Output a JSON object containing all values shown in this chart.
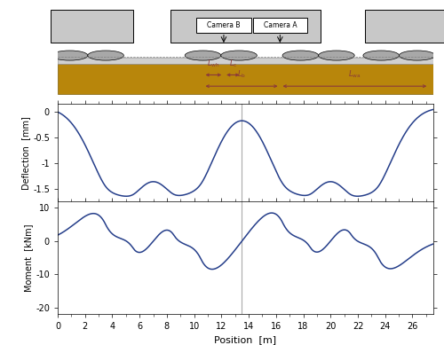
{
  "line_color": "#253e8a",
  "vline_color": "#aaaaaa",
  "vline_x": 13.5,
  "xlim": [
    0,
    27.5
  ],
  "xticks": [
    0,
    2,
    4,
    6,
    8,
    10,
    12,
    14,
    16,
    18,
    20,
    22,
    24,
    26
  ],
  "deflection_ylim": [
    -1.75,
    0.15
  ],
  "deflection_yticks": [
    0,
    -0.5,
    -1,
    -1.5
  ],
  "deflection_ylabel": "Deflection  [mm]",
  "moment_ylim": [
    -22,
    12
  ],
  "moment_yticks": [
    -20,
    -10,
    0,
    10
  ],
  "moment_ylabel": "Moment  [kNm]",
  "xlabel": "Position  [m]",
  "rail_color": "#b8860b",
  "annotation_color": "#8B3A3A",
  "gray_light": "#c8c8c8",
  "gray_med": "#a8a8a8",
  "wheel_positions": [
    3.5,
    5.5,
    8.5,
    10.5,
    16.5,
    18.5,
    21.5,
    23.5
  ],
  "k_val": 0.5,
  "EI_val": 1.0,
  "defl_scale": -1.65,
  "mom_scale": 8.5
}
